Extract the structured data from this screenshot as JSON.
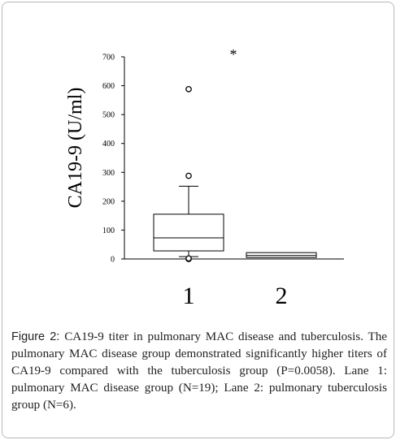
{
  "chart_data": {
    "type": "box",
    "ylabel": "CA19-9 (U/ml)",
    "ylim": [
      0,
      700
    ],
    "yticks": [
      "0",
      "100",
      "200",
      "300",
      "400",
      "500",
      "600",
      "700"
    ],
    "categories": [
      "1",
      "2"
    ],
    "boxes": [
      {
        "category": "1",
        "whisker_low": 8,
        "q1": 28,
        "median": 73,
        "q3": 155,
        "whisker_high": 252,
        "outliers": [
          0,
          2,
          288,
          588
        ]
      },
      {
        "category": "2",
        "whisker_low": 5,
        "q1": 5,
        "median": 12,
        "q3": 22,
        "whisker_high": 22,
        "outliers": []
      }
    ],
    "significance": {
      "between": [
        "1",
        "2"
      ],
      "label": "*"
    }
  },
  "caption": {
    "label": "Figure 2:",
    "text": " CA19-9 titer in pulmonary MAC disease and tuberculosis. The pulmonary MAC disease group demonstrated significantly higher titers of CA19-9 compared with the tuberculosis group (P=0.0058). Lane 1: pulmonary MAC disease group (N=19); Lane 2: pulmonary tuberculosis group (N=6)."
  }
}
